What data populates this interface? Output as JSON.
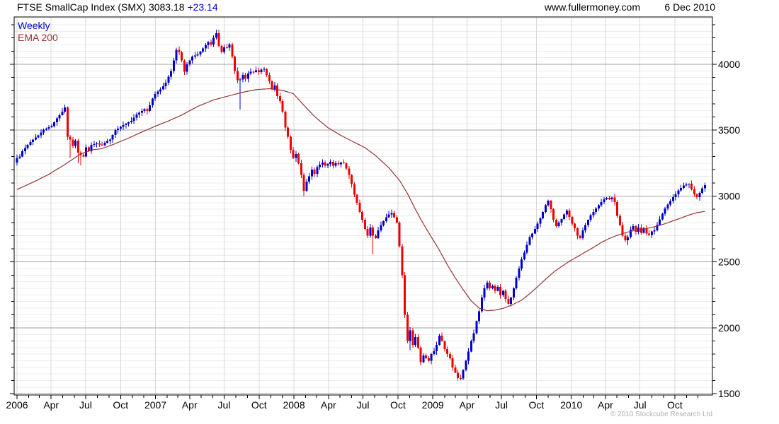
{
  "header": {
    "title": "FTSE SmallCap Index (SMX) 3083.18",
    "change": "+23.14",
    "website": "www.fullermoney.com",
    "date": "6 Dec 2010"
  },
  "legend": {
    "timeframe": "Weekly",
    "ema": "EMA 200"
  },
  "footer": {
    "copyright": "© 2010 Stockcube Research Ltd"
  },
  "chart_data": {
    "type": "candlestick",
    "title": "FTSE SmallCap Index (SMX)",
    "timeframe": "weekly",
    "last_price": 3083.18,
    "change": 23.14,
    "start": {
      "year": 2006,
      "month": 1
    },
    "weeks": 260,
    "ylim": [
      1489,
      4360
    ],
    "y_major_ticks": [
      1500,
      2000,
      2500,
      3000,
      3500,
      4000
    ],
    "y_minor_tick_step": 100,
    "grid": {
      "h_minor_step": 50,
      "v_step_months": 3,
      "grid_on": true
    },
    "legend_position": "top-left",
    "colors": {
      "up": "#0000cc",
      "down": "#ee0000",
      "ema": "#993333",
      "grid_minor": "#ececec",
      "grid_major": "#a0a0a0",
      "grid_vertical": "#d8d8d8",
      "axis": "#000000",
      "label": "#000000",
      "copyright": "#b0b0b0"
    },
    "x_labels": [
      {
        "m": 0,
        "t": "2006"
      },
      {
        "m": 3,
        "t": "Apr"
      },
      {
        "m": 6,
        "t": "Jul"
      },
      {
        "m": 9,
        "t": "Oct"
      },
      {
        "m": 12,
        "t": "2007"
      },
      {
        "m": 15,
        "t": "Apr"
      },
      {
        "m": 18,
        "t": "Jul"
      },
      {
        "m": 21,
        "t": "Oct"
      },
      {
        "m": 24,
        "t": "2008"
      },
      {
        "m": 27,
        "t": "Apr"
      },
      {
        "m": 30,
        "t": "Jul"
      },
      {
        "m": 33,
        "t": "Oct"
      },
      {
        "m": 36,
        "t": "2009"
      },
      {
        "m": 39,
        "t": "Apr"
      },
      {
        "m": 42,
        "t": "Jul"
      },
      {
        "m": 45,
        "t": "Oct"
      },
      {
        "m": 48,
        "t": "2010"
      },
      {
        "m": 51,
        "t": "Apr"
      },
      {
        "m": 54,
        "t": "Jul"
      },
      {
        "m": 57,
        "t": "Oct"
      }
    ],
    "close_anchors": [
      [
        0,
        3290
      ],
      [
        1,
        3300
      ],
      [
        2,
        3340
      ],
      [
        4,
        3390
      ],
      [
        6,
        3430
      ],
      [
        8,
        3460
      ],
      [
        10,
        3505
      ],
      [
        13,
        3530
      ],
      [
        15,
        3590
      ],
      [
        17,
        3640
      ],
      [
        18,
        3673
      ],
      [
        19,
        3450
      ],
      [
        20,
        3430
      ],
      [
        21,
        3380
      ],
      [
        22,
        3420
      ],
      [
        23,
        3330
      ],
      [
        24,
        3310
      ],
      [
        25,
        3300
      ],
      [
        26,
        3370
      ],
      [
        27,
        3340
      ],
      [
        28,
        3390
      ],
      [
        30,
        3400
      ],
      [
        32,
        3385
      ],
      [
        33,
        3405
      ],
      [
        35,
        3430
      ],
      [
        37,
        3500
      ],
      [
        40,
        3540
      ],
      [
        43,
        3570
      ],
      [
        45,
        3620
      ],
      [
        48,
        3660
      ],
      [
        49,
        3645
      ],
      [
        50,
        3690
      ],
      [
        51,
        3740
      ],
      [
        52,
        3775
      ],
      [
        54,
        3810
      ],
      [
        56,
        3860
      ],
      [
        58,
        3950
      ],
      [
        60,
        4110
      ],
      [
        61,
        4090
      ],
      [
        62,
        4030
      ],
      [
        63,
        3945
      ],
      [
        64,
        4000
      ],
      [
        66,
        4060
      ],
      [
        68,
        4075
      ],
      [
        70,
        4120
      ],
      [
        72,
        4170
      ],
      [
        73,
        4150
      ],
      [
        74,
        4200
      ],
      [
        75,
        4235
      ],
      [
        76,
        4140
      ],
      [
        77,
        4095
      ],
      [
        78,
        4130
      ],
      [
        79,
        4125
      ],
      [
        80,
        4150
      ],
      [
        81,
        4060
      ],
      [
        82,
        3950
      ],
      [
        83,
        3880
      ],
      [
        84,
        3885
      ],
      [
        85,
        3920
      ],
      [
        86,
        3890
      ],
      [
        87,
        3930
      ],
      [
        88,
        3945
      ],
      [
        89,
        3940
      ],
      [
        90,
        3955
      ],
      [
        91,
        3940
      ],
      [
        92,
        3960
      ],
      [
        93,
        3965
      ],
      [
        94,
        3920
      ],
      [
        95,
        3870
      ],
      [
        96,
        3810
      ],
      [
        97,
        3840
      ],
      [
        98,
        3760
      ],
      [
        99,
        3720
      ],
      [
        100,
        3640
      ],
      [
        101,
        3520
      ],
      [
        102,
        3450
      ],
      [
        103,
        3350
      ],
      [
        104,
        3290
      ],
      [
        105,
        3320
      ],
      [
        106,
        3250
      ],
      [
        107,
        3160
      ],
      [
        108,
        3040
      ],
      [
        109,
        3110
      ],
      [
        110,
        3150
      ],
      [
        111,
        3200
      ],
      [
        112,
        3170
      ],
      [
        113,
        3220
      ],
      [
        115,
        3255
      ],
      [
        116,
        3230
      ],
      [
        117,
        3245
      ],
      [
        118,
        3260
      ],
      [
        119,
        3230
      ],
      [
        120,
        3250
      ],
      [
        121,
        3240
      ],
      [
        122,
        3255
      ],
      [
        123,
        3250
      ],
      [
        124,
        3210
      ],
      [
        125,
        3160
      ],
      [
        126,
        3090
      ],
      [
        127,
        3010
      ],
      [
        128,
        2950
      ],
      [
        129,
        2880
      ],
      [
        130,
        2820
      ],
      [
        131,
        2750
      ],
      [
        132,
        2700
      ],
      [
        133,
        2760
      ],
      [
        134,
        2700
      ],
      [
        135,
        2680
      ],
      [
        136,
        2740
      ],
      [
        137,
        2780
      ],
      [
        138,
        2810
      ],
      [
        139,
        2840
      ],
      [
        140,
        2860
      ],
      [
        141,
        2870
      ],
      [
        142,
        2840
      ],
      [
        143,
        2800
      ],
      [
        144,
        2620
      ],
      [
        145,
        2400
      ],
      [
        146,
        2100
      ],
      [
        147,
        1900
      ],
      [
        148,
        1980
      ],
      [
        149,
        1870
      ],
      [
        150,
        1930
      ],
      [
        151,
        1850
      ],
      [
        152,
        1741
      ],
      [
        153,
        1790
      ],
      [
        154,
        1770
      ],
      [
        155,
        1750
      ],
      [
        156,
        1800
      ],
      [
        157,
        1822
      ],
      [
        158,
        1870
      ],
      [
        159,
        1940
      ],
      [
        160,
        1900
      ],
      [
        161,
        1840
      ],
      [
        162,
        1800
      ],
      [
        163,
        1770
      ],
      [
        164,
        1700
      ],
      [
        165,
        1660
      ],
      [
        166,
        1620
      ],
      [
        167,
        1615
      ],
      [
        168,
        1680
      ],
      [
        169,
        1750
      ],
      [
        170,
        1820
      ],
      [
        171,
        1900
      ],
      [
        172,
        1960
      ],
      [
        173,
        2050
      ],
      [
        174,
        2127
      ],
      [
        175,
        2230
      ],
      [
        176,
        2300
      ],
      [
        177,
        2342
      ],
      [
        178,
        2300
      ],
      [
        179,
        2320
      ],
      [
        180,
        2280
      ],
      [
        181,
        2310
      ],
      [
        182,
        2250
      ],
      [
        183,
        2280
      ],
      [
        184,
        2220
      ],
      [
        185,
        2181
      ],
      [
        186,
        2230
      ],
      [
        187,
        2300
      ],
      [
        188,
        2380
      ],
      [
        189,
        2450
      ],
      [
        190,
        2520
      ],
      [
        191,
        2570
      ],
      [
        192,
        2630
      ],
      [
        193,
        2690
      ],
      [
        194,
        2717
      ],
      [
        195,
        2750
      ],
      [
        196,
        2790
      ],
      [
        197,
        2830
      ],
      [
        198,
        2880
      ],
      [
        199,
        2930
      ],
      [
        200,
        2965
      ],
      [
        201,
        2900
      ],
      [
        202,
        2820
      ],
      [
        203,
        2771
      ],
      [
        204,
        2800
      ],
      [
        205,
        2825
      ],
      [
        206,
        2860
      ],
      [
        207,
        2890
      ],
      [
        208,
        2841
      ],
      [
        209,
        2790
      ],
      [
        210,
        2755
      ],
      [
        211,
        2700
      ],
      [
        212,
        2680
      ],
      [
        213,
        2740
      ],
      [
        214,
        2780
      ],
      [
        215,
        2820
      ],
      [
        216,
        2855
      ],
      [
        217,
        2880
      ],
      [
        218,
        2905
      ],
      [
        219,
        2930
      ],
      [
        220,
        2955
      ],
      [
        221,
        2975
      ],
      [
        222,
        2986
      ],
      [
        223,
        2975
      ],
      [
        224,
        2990
      ],
      [
        225,
        2955
      ],
      [
        226,
        2850
      ],
      [
        227,
        2780
      ],
      [
        228,
        2700
      ],
      [
        229,
        2664
      ],
      [
        230,
        2690
      ],
      [
        231,
        2745
      ],
      [
        232,
        2771
      ],
      [
        233,
        2730
      ],
      [
        234,
        2762
      ],
      [
        235,
        2722
      ],
      [
        236,
        2756
      ],
      [
        237,
        2717
      ],
      [
        238,
        2704
      ],
      [
        239,
        2732
      ],
      [
        240,
        2740
      ],
      [
        241,
        2782
      ],
      [
        242,
        2824
      ],
      [
        243,
        2866
      ],
      [
        244,
        2905
      ],
      [
        245,
        2935
      ],
      [
        246,
        2962
      ],
      [
        247,
        2992
      ],
      [
        248,
        3012
      ],
      [
        249,
        3042
      ],
      [
        250,
        3062
      ],
      [
        251,
        3080
      ],
      [
        252,
        3088
      ],
      [
        253,
        3093
      ],
      [
        254,
        3052
      ],
      [
        255,
        3012
      ],
      [
        256,
        2992
      ],
      [
        257,
        3025
      ],
      [
        258,
        3060.04
      ],
      [
        259,
        3083.18
      ]
    ],
    "first_open": 3255,
    "wick_low_overrides": [
      [
        20,
        3290
      ],
      [
        23,
        3250
      ],
      [
        24,
        3234
      ],
      [
        63,
        3920
      ],
      [
        84,
        3656
      ],
      [
        105,
        3260
      ],
      [
        108,
        2997
      ],
      [
        134,
        2557
      ],
      [
        146,
        2075
      ],
      [
        148,
        1832
      ],
      [
        167,
        1603
      ],
      [
        230,
        2627
      ],
      [
        256,
        2975
      ]
    ],
    "wick_high_overrides": [
      [
        18,
        3694
      ],
      [
        60,
        4125
      ],
      [
        75,
        4262
      ],
      [
        80,
        4160
      ],
      [
        90,
        3985
      ],
      [
        177,
        2358
      ],
      [
        200,
        2972
      ],
      [
        222,
        2991
      ],
      [
        224,
        2995
      ],
      [
        253,
        3096
      ]
    ],
    "ema_anchors": [
      [
        0,
        3050
      ],
      [
        6,
        3105
      ],
      [
        12,
        3165
      ],
      [
        18,
        3240
      ],
      [
        24,
        3320
      ],
      [
        28,
        3350
      ],
      [
        32,
        3360
      ],
      [
        36,
        3390
      ],
      [
        42,
        3440
      ],
      [
        48,
        3495
      ],
      [
        52,
        3530
      ],
      [
        57,
        3570
      ],
      [
        62,
        3615
      ],
      [
        68,
        3680
      ],
      [
        74,
        3730
      ],
      [
        80,
        3762
      ],
      [
        85,
        3788
      ],
      [
        90,
        3808
      ],
      [
        95,
        3815
      ],
      [
        100,
        3802
      ],
      [
        104,
        3778
      ],
      [
        108,
        3690
      ],
      [
        112,
        3605
      ],
      [
        117,
        3520
      ],
      [
        122,
        3460
      ],
      [
        127,
        3408
      ],
      [
        131,
        3368
      ],
      [
        135,
        3308
      ],
      [
        140,
        3215
      ],
      [
        144,
        3120
      ],
      [
        147,
        3020
      ],
      [
        150,
        2900
      ],
      [
        153,
        2790
      ],
      [
        156,
        2690
      ],
      [
        159,
        2590
      ],
      [
        162,
        2480
      ],
      [
        165,
        2380
      ],
      [
        168,
        2290
      ],
      [
        171,
        2205
      ],
      [
        174,
        2150
      ],
      [
        177,
        2130
      ],
      [
        180,
        2135
      ],
      [
        183,
        2148
      ],
      [
        186,
        2170
      ],
      [
        190,
        2210
      ],
      [
        193,
        2258
      ],
      [
        196,
        2312
      ],
      [
        199,
        2368
      ],
      [
        202,
        2422
      ],
      [
        205,
        2465
      ],
      [
        208,
        2505
      ],
      [
        211,
        2540
      ],
      [
        214,
        2575
      ],
      [
        217,
        2610
      ],
      [
        220,
        2648
      ],
      [
        223,
        2678
      ],
      [
        226,
        2702
      ],
      [
        229,
        2722
      ],
      [
        232,
        2736
      ],
      [
        235,
        2746
      ],
      [
        238,
        2758
      ],
      [
        241,
        2772
      ],
      [
        244,
        2790
      ],
      [
        247,
        2812
      ],
      [
        250,
        2834
      ],
      [
        253,
        2856
      ],
      [
        256,
        2874
      ],
      [
        259,
        2884
      ]
    ]
  }
}
